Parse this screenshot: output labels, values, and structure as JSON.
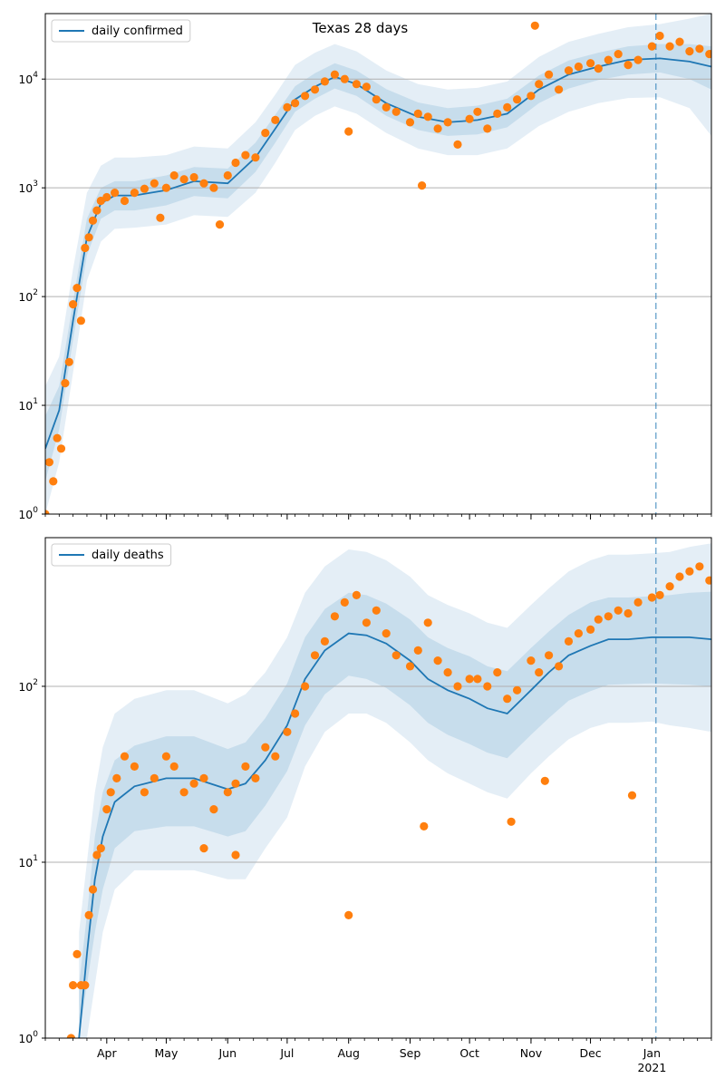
{
  "colors": {
    "line": "#1f77b4",
    "dots": "#ff7f0e",
    "band": "#1f77b4",
    "grid": "#b0b0b0",
    "vline": "#1f77b4"
  },
  "chart_data": [
    {
      "type": "line",
      "title": "Texas 28 days",
      "yscale": "log",
      "ylim": [
        1,
        40000
      ],
      "yticks": [
        {
          "v": 1,
          "label": "10"
        },
        {
          "v": 10,
          "label": "10"
        },
        {
          "v": 100,
          "label": "10"
        },
        {
          "v": 1000,
          "label": "10"
        },
        {
          "v": 10000,
          "label": "10"
        }
      ],
      "ytick_exponents": [
        "0",
        "1",
        "2",
        "3",
        "4"
      ],
      "xlim": [
        "2020-03-01",
        "2021-01-31"
      ],
      "xtick_labels": [
        "Apr",
        "May",
        "Jun",
        "Jul",
        "Aug",
        "Sep",
        "Oct",
        "Nov",
        "Dec",
        "Jan",
        "2021"
      ],
      "legend": "daily confirmed",
      "legend_position": "top-left",
      "grid": "horizontal",
      "vline_date": "2021-01-03",
      "series": [
        {
          "name": "daily confirmed",
          "kind": "line",
          "x": [
            "2020-03-01",
            "2020-03-08",
            "2020-03-15",
            "2020-03-22",
            "2020-03-29",
            "2020-04-05",
            "2020-04-15",
            "2020-05-01",
            "2020-05-15",
            "2020-06-01",
            "2020-06-15",
            "2020-06-25",
            "2020-07-05",
            "2020-07-15",
            "2020-07-25",
            "2020-08-05",
            "2020-08-20",
            "2020-09-05",
            "2020-09-20",
            "2020-10-05",
            "2020-10-20",
            "2020-11-05",
            "2020-11-20",
            "2020-12-05",
            "2020-12-20",
            "2021-01-05",
            "2021-01-20",
            "2021-01-31"
          ],
          "values": [
            4,
            9,
            60,
            350,
            720,
            850,
            850,
            950,
            1150,
            1100,
            1900,
            3500,
            6500,
            8500,
            10500,
            9000,
            6000,
            4500,
            4000,
            4200,
            4800,
            8000,
            11000,
            13000,
            15000,
            15500,
            14500,
            13000
          ]
        },
        {
          "name": "",
          "kind": "scatter",
          "x": [
            "2020-03-01",
            "2020-03-03",
            "2020-03-05",
            "2020-03-07",
            "2020-03-09",
            "2020-03-11",
            "2020-03-13",
            "2020-03-15",
            "2020-03-17",
            "2020-03-19",
            "2020-03-21",
            "2020-03-23",
            "2020-03-25",
            "2020-03-27",
            "2020-03-29",
            "2020-04-01",
            "2020-04-05",
            "2020-04-10",
            "2020-04-15",
            "2020-04-20",
            "2020-04-25",
            "2020-05-01",
            "2020-05-05",
            "2020-05-10",
            "2020-05-15",
            "2020-05-20",
            "2020-05-25",
            "2020-06-01",
            "2020-06-05",
            "2020-06-10",
            "2020-06-15",
            "2020-06-20",
            "2020-06-25",
            "2020-07-01",
            "2020-07-05",
            "2020-07-10",
            "2020-07-15",
            "2020-07-20",
            "2020-07-25",
            "2020-07-30",
            "2020-08-05",
            "2020-08-10",
            "2020-08-15",
            "2020-08-20",
            "2020-08-25",
            "2020-09-01",
            "2020-09-05",
            "2020-09-10",
            "2020-09-15",
            "2020-09-20",
            "2020-09-25",
            "2020-10-01",
            "2020-10-05",
            "2020-10-10",
            "2020-10-15",
            "2020-10-20",
            "2020-10-25",
            "2020-11-01",
            "2020-11-05",
            "2020-11-10",
            "2020-11-15",
            "2020-11-20",
            "2020-11-25",
            "2020-12-01",
            "2020-12-05",
            "2020-12-10",
            "2020-12-15",
            "2020-12-20",
            "2020-12-25",
            "2021-01-01",
            "2021-01-05",
            "2021-01-10",
            "2021-01-15",
            "2021-01-20",
            "2021-01-25",
            "2021-01-30",
            "2020-09-07",
            "2020-11-03",
            "2020-08-01",
            "2020-04-28",
            "2020-05-28"
          ],
          "values": [
            1,
            3,
            2,
            5,
            4,
            16,
            25,
            85,
            120,
            60,
            280,
            350,
            500,
            620,
            760,
            820,
            900,
            760,
            900,
            980,
            1100,
            1000,
            1300,
            1200,
            1250,
            1100,
            1000,
            1300,
            1700,
            2000,
            1900,
            3200,
            4200,
            5500,
            6000,
            7000,
            8000,
            9500,
            11000,
            10000,
            9000,
            8500,
            6500,
            5500,
            5000,
            4000,
            4800,
            4500,
            3500,
            4000,
            2500,
            4300,
            5000,
            3500,
            4800,
            5500,
            6500,
            7000,
            9000,
            11000,
            8000,
            12000,
            13000,
            14000,
            12500,
            15000,
            17000,
            13500,
            15000,
            20000,
            25000,
            20000,
            22000,
            18000,
            19000,
            17000,
            1050,
            31000,
            3300,
            530,
            460
          ]
        }
      ],
      "bands": {
        "x": [
          "2020-03-01",
          "2020-03-08",
          "2020-03-15",
          "2020-03-22",
          "2020-03-29",
          "2020-04-05",
          "2020-04-15",
          "2020-05-01",
          "2020-05-15",
          "2020-06-01",
          "2020-06-15",
          "2020-06-25",
          "2020-07-05",
          "2020-07-15",
          "2020-07-25",
          "2020-08-05",
          "2020-08-20",
          "2020-09-05",
          "2020-09-20",
          "2020-10-05",
          "2020-10-20",
          "2020-11-05",
          "2020-11-20",
          "2020-12-05",
          "2020-12-20",
          "2021-01-05",
          "2021-01-20",
          "2021-01-31"
        ],
        "outer_low": [
          1,
          3,
          20,
          140,
          320,
          420,
          430,
          460,
          560,
          540,
          900,
          1700,
          3400,
          4600,
          5600,
          4800,
          3200,
          2300,
          2000,
          2000,
          2300,
          3700,
          5000,
          6000,
          6700,
          6800,
          5400,
          3000
        ],
        "outer_high": [
          15,
          28,
          180,
          900,
          1600,
          1900,
          1900,
          2000,
          2400,
          2300,
          4000,
          7200,
          13500,
          17500,
          21000,
          18000,
          12000,
          9000,
          8000,
          8300,
          9500,
          16000,
          22000,
          26000,
          30000,
          32000,
          36000,
          40000
        ],
        "inner_low": [
          2,
          6,
          40,
          240,
          520,
          620,
          620,
          690,
          840,
          800,
          1400,
          2600,
          5000,
          6600,
          8200,
          7000,
          4600,
          3400,
          3000,
          3100,
          3600,
          6000,
          8200,
          9800,
          11000,
          11500,
          10000,
          8000
        ],
        "inner_high": [
          8,
          15,
          90,
          520,
          1000,
          1150,
          1150,
          1300,
          1550,
          1500,
          2600,
          4700,
          8600,
          11300,
          14000,
          12000,
          8100,
          6100,
          5400,
          5700,
          6600,
          10800,
          14800,
          17500,
          20000,
          21000,
          21000,
          20000
        ]
      }
    },
    {
      "type": "line",
      "title": "",
      "yscale": "log",
      "ylim": [
        1,
        700
      ],
      "yticks": [
        {
          "v": 1,
          "label": "10"
        },
        {
          "v": 10,
          "label": "10"
        },
        {
          "v": 100,
          "label": "10"
        }
      ],
      "ytick_exponents": [
        "0",
        "1",
        "2"
      ],
      "xlim": [
        "2020-03-01",
        "2021-01-31"
      ],
      "xtick_labels": [
        "Apr",
        "May",
        "Jun",
        "Jul",
        "Aug",
        "Sep",
        "Oct",
        "Nov",
        "Dec",
        "Jan",
        "2021"
      ],
      "legend": "daily deaths",
      "legend_position": "top-left",
      "grid": "horizontal",
      "vline_date": "2021-01-03",
      "series": [
        {
          "name": "daily deaths",
          "kind": "line",
          "x": [
            "2020-03-18",
            "2020-03-22",
            "2020-03-26",
            "2020-03-30",
            "2020-04-05",
            "2020-04-15",
            "2020-05-01",
            "2020-05-15",
            "2020-06-01",
            "2020-06-10",
            "2020-06-20",
            "2020-07-01",
            "2020-07-10",
            "2020-07-20",
            "2020-08-01",
            "2020-08-10",
            "2020-08-20",
            "2020-09-01",
            "2020-09-10",
            "2020-09-20",
            "2020-10-01",
            "2020-10-10",
            "2020-10-20",
            "2020-11-01",
            "2020-11-10",
            "2020-11-20",
            "2020-12-01",
            "2020-12-10",
            "2020-12-20",
            "2021-01-01",
            "2021-01-10",
            "2021-01-20",
            "2021-01-31"
          ],
          "values": [
            1,
            3,
            8,
            14,
            22,
            27,
            30,
            30,
            26,
            28,
            38,
            60,
            110,
            160,
            200,
            195,
            175,
            140,
            110,
            95,
            85,
            75,
            70,
            95,
            120,
            150,
            170,
            185,
            185,
            190,
            190,
            190,
            185
          ]
        },
        {
          "name": "",
          "kind": "scatter",
          "x": [
            "2020-03-14",
            "2020-03-15",
            "2020-03-17",
            "2020-03-19",
            "2020-03-21",
            "2020-03-23",
            "2020-03-25",
            "2020-03-27",
            "2020-03-29",
            "2020-04-01",
            "2020-04-03",
            "2020-04-06",
            "2020-04-10",
            "2020-04-15",
            "2020-04-20",
            "2020-04-25",
            "2020-05-01",
            "2020-05-05",
            "2020-05-10",
            "2020-05-15",
            "2020-05-20",
            "2020-05-25",
            "2020-06-01",
            "2020-06-05",
            "2020-06-10",
            "2020-06-15",
            "2020-06-20",
            "2020-06-25",
            "2020-07-01",
            "2020-07-05",
            "2020-07-10",
            "2020-07-15",
            "2020-07-20",
            "2020-07-25",
            "2020-07-30",
            "2020-08-05",
            "2020-08-10",
            "2020-08-15",
            "2020-08-20",
            "2020-08-25",
            "2020-09-01",
            "2020-09-05",
            "2020-09-10",
            "2020-09-15",
            "2020-09-20",
            "2020-09-25",
            "2020-10-01",
            "2020-10-05",
            "2020-10-10",
            "2020-10-15",
            "2020-10-20",
            "2020-10-25",
            "2020-11-01",
            "2020-11-05",
            "2020-11-10",
            "2020-11-15",
            "2020-11-20",
            "2020-11-25",
            "2020-12-01",
            "2020-12-05",
            "2020-12-10",
            "2020-12-15",
            "2020-12-20",
            "2020-12-25",
            "2021-01-01",
            "2021-01-05",
            "2021-01-10",
            "2021-01-15",
            "2021-01-20",
            "2021-01-25",
            "2021-01-30",
            "2020-08-01",
            "2020-09-08",
            "2020-11-08",
            "2020-12-22",
            "2020-10-22",
            "2020-06-05",
            "2020-05-20"
          ],
          "values": [
            1,
            2,
            3,
            2,
            2,
            5,
            7,
            11,
            12,
            20,
            25,
            30,
            40,
            35,
            25,
            30,
            40,
            35,
            25,
            28,
            30,
            20,
            25,
            28,
            35,
            30,
            45,
            40,
            55,
            70,
            100,
            150,
            180,
            250,
            300,
            330,
            230,
            270,
            200,
            150,
            130,
            160,
            230,
            140,
            120,
            100,
            110,
            110,
            100,
            120,
            85,
            95,
            140,
            120,
            150,
            130,
            180,
            200,
            210,
            240,
            250,
            270,
            260,
            300,
            320,
            330,
            370,
            420,
            450,
            480,
            400,
            5,
            16,
            29,
            24,
            17,
            11,
            12
          ]
        }
      ],
      "bands": {
        "x": [
          "2020-03-18",
          "2020-03-22",
          "2020-03-26",
          "2020-03-30",
          "2020-04-05",
          "2020-04-15",
          "2020-05-01",
          "2020-05-15",
          "2020-06-01",
          "2020-06-10",
          "2020-06-20",
          "2020-07-01",
          "2020-07-10",
          "2020-07-20",
          "2020-08-01",
          "2020-08-10",
          "2020-08-20",
          "2020-09-01",
          "2020-09-10",
          "2020-09-20",
          "2020-10-01",
          "2020-10-10",
          "2020-10-20",
          "2020-11-01",
          "2020-11-10",
          "2020-11-20",
          "2020-12-01",
          "2020-12-10",
          "2020-12-20",
          "2021-01-01",
          "2021-01-10",
          "2021-01-20",
          "2021-01-31"
        ],
        "outer_low": [
          1,
          1,
          2,
          4,
          7,
          9,
          9,
          9,
          8,
          8,
          12,
          18,
          35,
          55,
          70,
          70,
          62,
          48,
          38,
          32,
          28,
          25,
          23,
          32,
          40,
          50,
          58,
          62,
          62,
          63,
          60,
          58,
          55
        ],
        "outer_high": [
          4,
          10,
          25,
          45,
          70,
          85,
          95,
          95,
          80,
          90,
          120,
          190,
          340,
          480,
          600,
          580,
          520,
          420,
          330,
          290,
          260,
          230,
          215,
          290,
          360,
          450,
          520,
          560,
          560,
          570,
          580,
          620,
          650
        ],
        "inner_low": [
          1,
          2,
          4,
          7,
          12,
          15,
          16,
          16,
          14,
          15,
          21,
          33,
          60,
          90,
          115,
          110,
          98,
          78,
          62,
          53,
          47,
          42,
          39,
          53,
          66,
          83,
          94,
          102,
          103,
          104,
          103,
          102,
          100
        ],
        "inner_high": [
          2,
          5,
          14,
          25,
          38,
          46,
          52,
          52,
          44,
          48,
          66,
          104,
          190,
          275,
          340,
          330,
          295,
          240,
          190,
          165,
          148,
          130,
          122,
          165,
          205,
          255,
          300,
          320,
          320,
          325,
          330,
          340,
          345
        ]
      }
    }
  ]
}
